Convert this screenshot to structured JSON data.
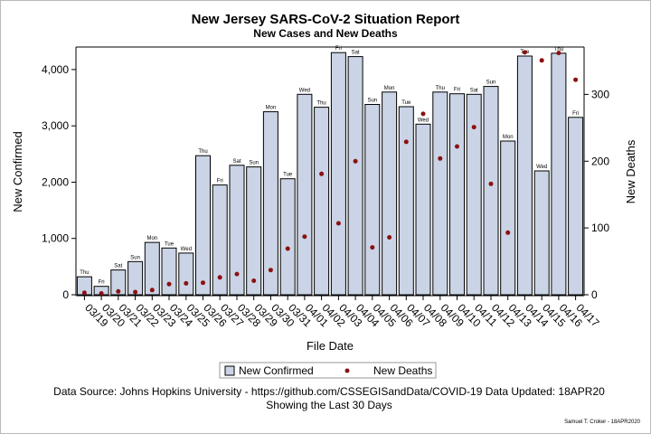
{
  "colors": {
    "bar_fill": "#cad4e6",
    "bar_stroke": "#000000",
    "deaths_marker": "#8b1111"
  },
  "chart_data": {
    "type": "bar",
    "title": "New Jersey SARS-CoV-2 Situation Report",
    "subtitle": "New Cases and New Deaths",
    "xlabel": "File Date",
    "ylabel": "New Confirmed",
    "y2label": "New Deaths",
    "categories": [
      "03/19",
      "03/20",
      "03/21",
      "03/22",
      "03/23",
      "03/24",
      "03/25",
      "03/26",
      "03/27",
      "03/28",
      "03/29",
      "03/30",
      "03/31",
      "04/01",
      "04/02",
      "04/03",
      "04/04",
      "04/05",
      "04/06",
      "04/07",
      "04/08",
      "04/09",
      "04/10",
      "04/11",
      "04/12",
      "04/13",
      "04/14",
      "04/15",
      "04/16",
      "04/17"
    ],
    "day_labels": [
      "Thu",
      "Fri",
      "Sat",
      "Sun",
      "Mon",
      "Tue",
      "Wed",
      "Thu",
      "Fri",
      "Sat",
      "Sun",
      "Mon",
      "Tue",
      "Wed",
      "Thu",
      "Fri",
      "Sat",
      "Sun",
      "Mon",
      "Tue",
      "Wed",
      "Thu",
      "Fri",
      "Sat",
      "Sun",
      "Mon",
      "Tue",
      "Wed",
      "Thu",
      "Fri"
    ],
    "series": [
      {
        "name": "New Confirmed",
        "kind": "bar",
        "axis": "left",
        "values": [
          320,
          150,
          440,
          590,
          930,
          830,
          740,
          2470,
          1950,
          2300,
          2270,
          3250,
          2060,
          3560,
          3330,
          4300,
          4230,
          3380,
          3600,
          3340,
          3030,
          3600,
          3570,
          3560,
          3700,
          2730,
          4240,
          2200,
          4290,
          3150
        ]
      },
      {
        "name": "New Deaths",
        "kind": "scatter",
        "axis": "right",
        "values": [
          3,
          2,
          5,
          4,
          7,
          16,
          17,
          18,
          26,
          31,
          21,
          37,
          69,
          87,
          181,
          107,
          200,
          71,
          86,
          229,
          271,
          204,
          222,
          251,
          166,
          93,
          363,
          351,
          362,
          322
        ]
      }
    ],
    "ylim": [
      0,
      4400
    ],
    "yticks": [
      "0",
      "1,000",
      "2,000",
      "3,000",
      "4,000"
    ],
    "y2lim": [
      0,
      371
    ],
    "y2ticks": [
      "0",
      "100",
      "200",
      "300"
    ],
    "grid": false,
    "legend_position": "bottom"
  },
  "footer": {
    "source": "Data Source: Johns Hopkins University - https://github.com/CSSEGISandData/COVID-19 Data Updated: 18APR20",
    "note": "Showing the Last 30 Days",
    "credit": "Samuel T. Croker - 18APR2020"
  }
}
